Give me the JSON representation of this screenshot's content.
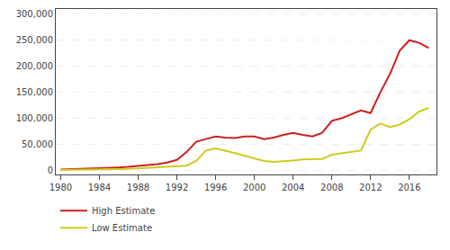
{
  "chart_data": {
    "type": "line",
    "x": [
      1980,
      1981,
      1982,
      1983,
      1984,
      1985,
      1986,
      1987,
      1988,
      1989,
      1990,
      1991,
      1992,
      1993,
      1994,
      1995,
      1996,
      1997,
      1998,
      1999,
      2000,
      2001,
      2002,
      2003,
      2004,
      2005,
      2006,
      2007,
      2008,
      2009,
      2010,
      2011,
      2012,
      2013,
      2014,
      2015,
      2016,
      2017,
      2018
    ],
    "series": [
      {
        "name": "High Estimate",
        "color": "#cc2020",
        "values": [
          1500,
          2000,
          2500,
          3000,
          3500,
          4500,
          5500,
          6500,
          8000,
          10000,
          12000,
          15000,
          20000,
          35000,
          55000,
          60000,
          65000,
          63000,
          62000,
          65000,
          65000,
          60000,
          63000,
          68000,
          72000,
          68000,
          65000,
          72000,
          95000,
          100000,
          108000,
          115000,
          110000,
          150000,
          185000,
          230000,
          250000,
          245000,
          235000
        ]
      },
      {
        "name": "Low Estimate",
        "color": "#cccc20",
        "values": [
          500,
          700,
          900,
          1200,
          1500,
          2000,
          2500,
          3000,
          3500,
          4500,
          5500,
          6500,
          7500,
          9000,
          18000,
          38000,
          42000,
          38000,
          33000,
          28000,
          23000,
          18000,
          16000,
          17000,
          19000,
          21000,
          21000,
          22000,
          30000,
          33000,
          36000,
          38000,
          78000,
          90000,
          83000,
          88000,
          98000,
          113000,
          120000
        ]
      }
    ],
    "xlim": [
      1979.5,
      2018.8
    ],
    "xticks": [
      1980,
      1984,
      1988,
      1992,
      1996,
      2000,
      2004,
      2008,
      2012,
      2016
    ],
    "ylim": [
      -8000,
      310000
    ],
    "yticks": [
      0,
      {
        "value": 50000,
        "label": "50,000"
      },
      {
        "value": 100000,
        "label": "100,000"
      },
      {
        "value": 150000,
        "label": "150,000"
      },
      {
        "value": 200000,
        "label": "200,000"
      },
      {
        "value": 250000,
        "label": "250,000"
      },
      {
        "value": 300000,
        "label": "300,000"
      }
    ],
    "grid": "y",
    "legend": "lower left"
  }
}
